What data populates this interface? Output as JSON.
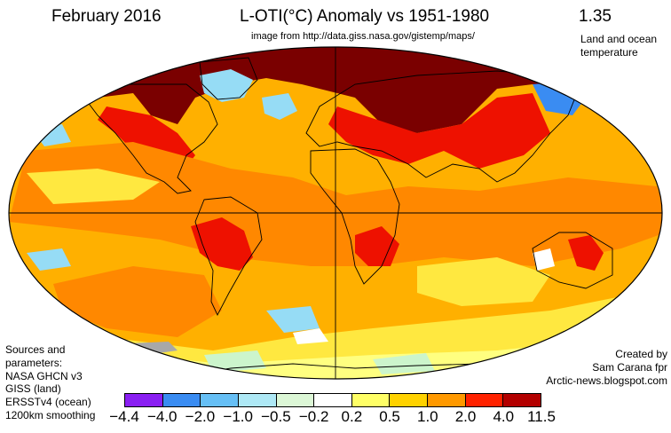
{
  "header": {
    "month": "February 2016",
    "title": "L-OTI(°C) Anomaly vs 1951-1980",
    "subtitle": "image from http://data.giss.nasa.gov/gistemp/maps/",
    "global_mean": "1.35",
    "note_line1": "Land and ocean",
    "note_line2": "temperature"
  },
  "sources": {
    "lines": [
      "Sources and",
      "parameters:",
      "NASA GHCN v3",
      "GISS (land)",
      "ERSSTv4 (ocean)",
      "1200km smoothing"
    ]
  },
  "credit": {
    "lines": [
      "Created by",
      "Sam Carana fpr",
      "Arctic-news.blogspot.com"
    ]
  },
  "legend": {
    "colors": [
      "#8a1ff2",
      "#3a8cf2",
      "#66bff5",
      "#aee8f5",
      "#dcf7d6",
      "#ffffff",
      "#ffff66",
      "#ffd200",
      "#ff9900",
      "#ff2200",
      "#b30000",
      "#740000"
    ],
    "labels": [
      "−4.4",
      "−4.0",
      "−2.0",
      "−1.0",
      "−0.5",
      "−0.2",
      "0.2",
      "0.5",
      "1.0",
      "2.0",
      "4.0",
      "11.5"
    ]
  },
  "palette": {
    "ocean_base": "#ffb000",
    "orange": "#ff8800",
    "red": "#ee1100",
    "dark_red": "#7a0000",
    "yellow": "#ffe840",
    "pale_yellow": "#ffff80",
    "light_blue": "#96dcf5",
    "blue": "#3a8cf2",
    "pale_green": "#ccf5cc",
    "gray": "#a8a8a8",
    "white": "#ffffff"
  }
}
